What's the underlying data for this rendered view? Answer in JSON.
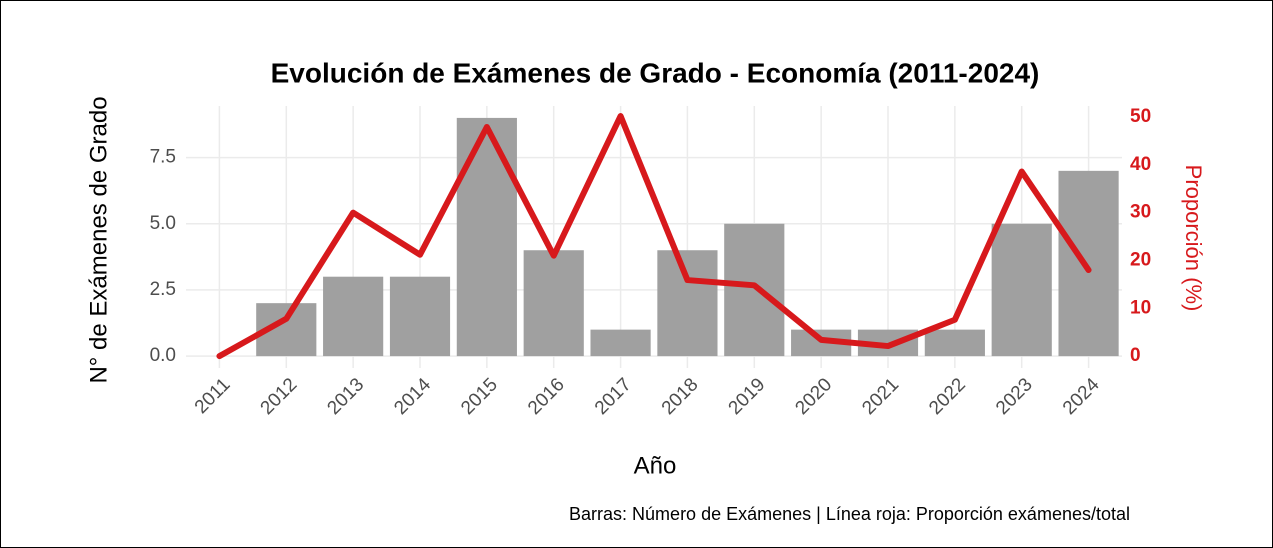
{
  "chart_data": {
    "type": "bar_line",
    "title": "Evolución de Exámenes de Grado - Economía (2011-2024)",
    "x_label": "Año",
    "y_label": "N° de Exámenes de Grado",
    "y2_label": "Proporción (%)",
    "caption": "Barras: Número de Exámenes | Línea roja: Proporción exámenes/total",
    "categories": [
      "2011",
      "2012",
      "2013",
      "2014",
      "2015",
      "2016",
      "2017",
      "2018",
      "2019",
      "2020",
      "2021",
      "2022",
      "2023",
      "2024"
    ],
    "series": [
      {
        "name": "Número de Exámenes",
        "type": "bar",
        "color": "#a0a0a0",
        "values": [
          0,
          2,
          3,
          3,
          9,
          4,
          1,
          4,
          5,
          1,
          1,
          1,
          5,
          7
        ]
      },
      {
        "name": "Proporción exámenes/total",
        "type": "line",
        "axis": "y2",
        "color": "#d7191c",
        "values": [
          0,
          7.8,
          30,
          21.2,
          47.9,
          21,
          50.2,
          15.9,
          14.8,
          3.4,
          2.1,
          7.6,
          38.6,
          18
        ]
      }
    ],
    "ylim": [
      -0.45,
      9.45
    ],
    "yticks": [
      {
        "value": 0,
        "label": "0.0"
      },
      {
        "value": 2.5,
        "label": "2.5"
      },
      {
        "value": 5,
        "label": "5.0"
      },
      {
        "value": 7.5,
        "label": "7.5"
      }
    ],
    "y2lim": [
      -2.49,
      52.3
    ],
    "y2ticks": [
      0,
      10,
      20,
      30,
      40,
      50
    ],
    "grid": true
  }
}
